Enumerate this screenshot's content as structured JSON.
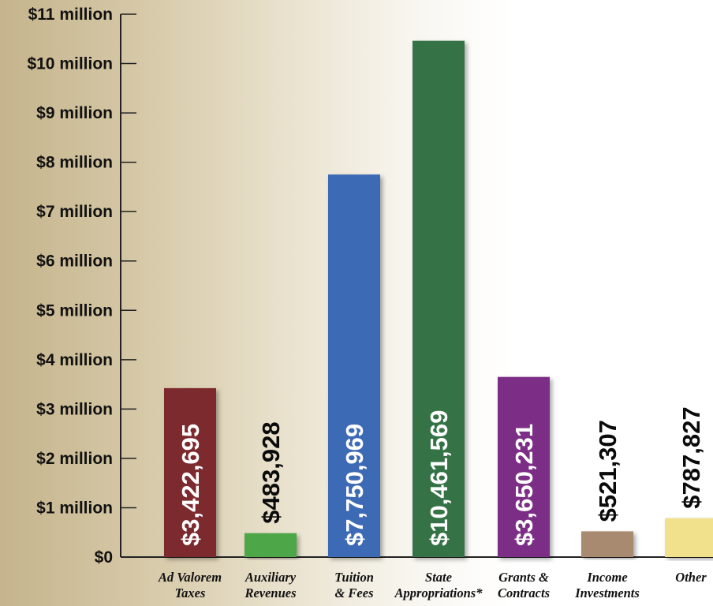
{
  "chart_data": {
    "type": "bar",
    "title": "",
    "xlabel": "",
    "ylabel": "",
    "ylim": [
      0,
      11000000
    ],
    "yticks": [
      {
        "value": 0,
        "label": "$0"
      },
      {
        "value": 1000000,
        "label": "$1 million"
      },
      {
        "value": 2000000,
        "label": "$2 million"
      },
      {
        "value": 3000000,
        "label": "$3 million"
      },
      {
        "value": 4000000,
        "label": "$4 million"
      },
      {
        "value": 5000000,
        "label": "$5 million"
      },
      {
        "value": 6000000,
        "label": "$6 million"
      },
      {
        "value": 7000000,
        "label": "$7 million"
      },
      {
        "value": 8000000,
        "label": "$8 million"
      },
      {
        "value": 9000000,
        "label": "$9 million"
      },
      {
        "value": 10000000,
        "label": "$10 million"
      },
      {
        "value": 11000000,
        "label": "$11 million"
      }
    ],
    "categories": [
      [
        "Ad Valorem",
        "Taxes"
      ],
      [
        "Auxiliary",
        "Revenues"
      ],
      [
        "Tuition",
        "& Fees"
      ],
      [
        "State",
        "Appropriations*"
      ],
      [
        "Grants &",
        "Contracts"
      ],
      [
        "Income",
        "Investments"
      ],
      [
        "Other"
      ]
    ],
    "values": [
      3422695,
      483928,
      7750969,
      10461569,
      3650231,
      521307,
      787827
    ],
    "value_labels": [
      "$3,422,695",
      "$483,928",
      "$7,750,969",
      "$10,461,569",
      "$3,650,231",
      "$521,307",
      "$787,827"
    ],
    "colors": [
      "#7d2a2e",
      "#4ea646",
      "#3c6bb4",
      "#347347",
      "#7c2d86",
      "#a78a70",
      "#f1e18c"
    ],
    "label_inside": [
      true,
      false,
      true,
      true,
      true,
      false,
      false
    ],
    "grid": false,
    "legend": "none"
  }
}
